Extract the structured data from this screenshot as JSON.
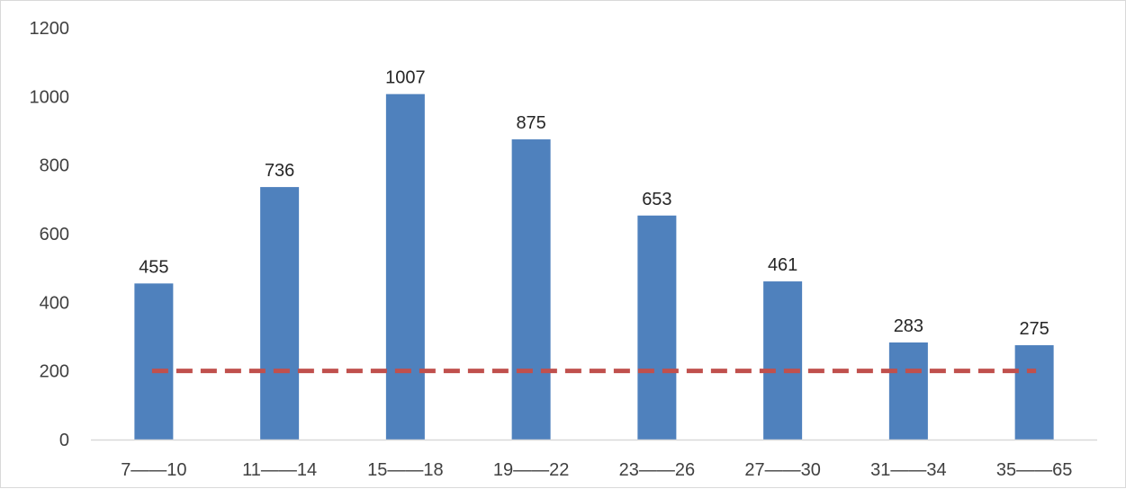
{
  "chart_data": {
    "type": "bar",
    "categories": [
      "7——10",
      "11——14",
      "15——18",
      "19——22",
      "23——26",
      "27——30",
      "31——34",
      "35——65"
    ],
    "series": [
      {
        "values": [
          455,
          736,
          1007,
          875,
          653,
          461,
          283,
          275
        ],
        "color": "#4f81bd"
      }
    ],
    "reference_line": {
      "value": 200,
      "style": "dashed",
      "color": "#c0504d"
    },
    "title": "",
    "xlabel": "",
    "ylabel": "",
    "ylim": [
      0,
      1200
    ],
    "yticks": [
      0,
      200,
      400,
      600,
      800,
      1000,
      1200
    ],
    "data_labels": true,
    "grid": false,
    "legend": "none"
  }
}
